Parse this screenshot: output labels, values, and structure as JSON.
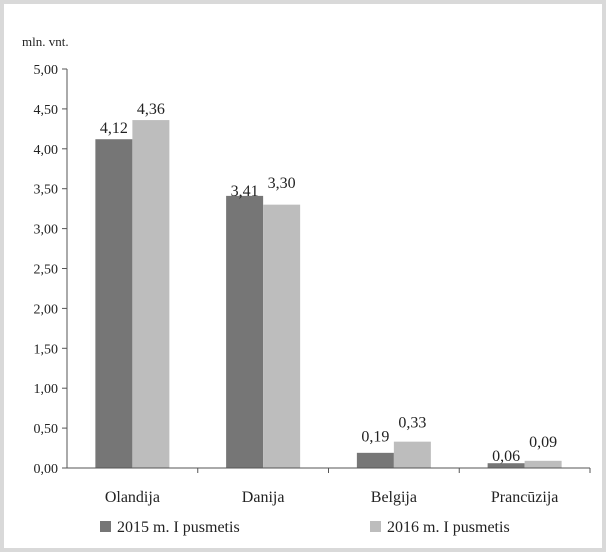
{
  "chart_data": {
    "type": "bar",
    "ylabel": "mln. vnt.",
    "ylim": [
      0,
      5
    ],
    "ytick_step": 0.5,
    "yticks": [
      "0,00",
      "0,50",
      "1,00",
      "1,50",
      "2,00",
      "2,50",
      "3,00",
      "3,50",
      "4,00",
      "4,50",
      "5,00"
    ],
    "categories": [
      "Olandija",
      "Danija",
      "Belgija",
      "Prancūzija"
    ],
    "series": [
      {
        "name": "2015 m. I pusmetis",
        "color": "#767676",
        "values": [
          4.12,
          3.41,
          0.19,
          0.06
        ],
        "labels": [
          "4,12",
          "3,41",
          "0,19",
          "0,06"
        ]
      },
      {
        "name": "2016 m. I pusmetis",
        "color": "#bdbdbd",
        "values": [
          4.36,
          3.3,
          0.33,
          0.09
        ],
        "labels": [
          "4,36",
          "3,30",
          "0,33",
          "0,09"
        ]
      }
    ],
    "grid": false,
    "legend_position": "bottom"
  }
}
